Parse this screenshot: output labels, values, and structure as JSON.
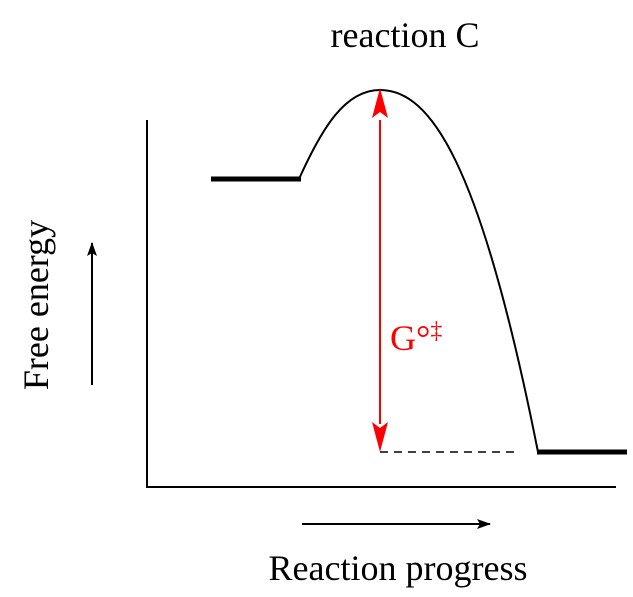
{
  "title": "reaction C",
  "y_axis_label": "Free energy",
  "x_axis_label": "Reaction progress",
  "barrier_label": {
    "main": "G°",
    "superscript": "‡"
  },
  "colors": {
    "line": "#000000",
    "barrier": "#ff0000",
    "background": "#ffffff"
  }
}
